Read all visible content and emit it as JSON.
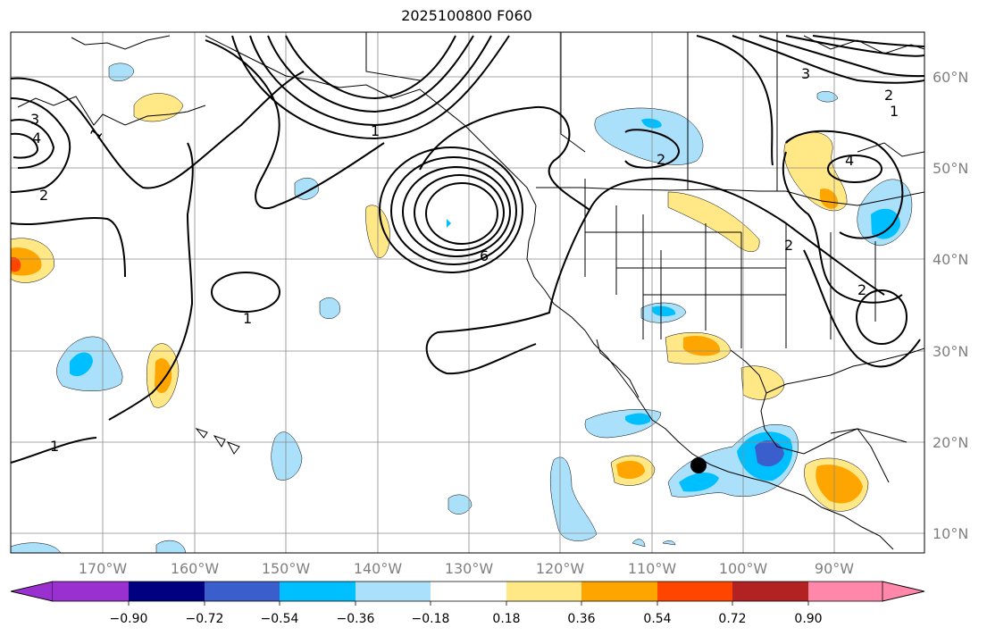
{
  "title": "2025100800 F060",
  "map": {
    "lon_labels": [
      "170°W",
      "160°W",
      "150°W",
      "140°W",
      "130°W",
      "120°W",
      "110°W",
      "100°W",
      "90°W"
    ],
    "lat_labels": [
      "60°N",
      "50°N",
      "40°N",
      "30°N",
      "20°N",
      "10°N"
    ],
    "contour_labels": [
      {
        "text": "1",
        "name": "contour-label-1-alaska"
      },
      {
        "text": "2",
        "name": "contour-label-2-west"
      },
      {
        "text": "3",
        "name": "contour-label-3-west"
      },
      {
        "text": "4",
        "name": "contour-label-4-west"
      },
      {
        "text": "1",
        "name": "contour-label-1-midpac"
      },
      {
        "text": "1",
        "name": "contour-label-1-southwest"
      },
      {
        "text": "6",
        "name": "contour-label-6-low"
      },
      {
        "text": "2",
        "name": "contour-label-2-canada"
      },
      {
        "text": "4",
        "name": "contour-label-4-east"
      },
      {
        "text": "2",
        "name": "contour-label-2-plains"
      },
      {
        "text": "2",
        "name": "contour-label-2-east"
      },
      {
        "text": "3",
        "name": "contour-label-3-northeast"
      },
      {
        "text": "2",
        "name": "contour-label-2-northeast"
      },
      {
        "text": "1",
        "name": "contour-label-1-northeast"
      }
    ],
    "marker": {
      "name": "location-marker",
      "lat": 17.5,
      "lon": -105.5
    }
  },
  "colorbar": {
    "ticks": [
      "−0.90",
      "−0.72",
      "−0.54",
      "−0.36",
      "−0.18",
      "0.18",
      "0.36",
      "0.54",
      "0.72",
      "0.90"
    ],
    "colors": [
      "#9b30d0",
      "#000080",
      "#3a5fcd",
      "#00bfff",
      "#abe0fb",
      "#ffffff",
      "#ffe885",
      "#ffa500",
      "#ff4500",
      "#b22222",
      "#ff88aa"
    ]
  }
}
